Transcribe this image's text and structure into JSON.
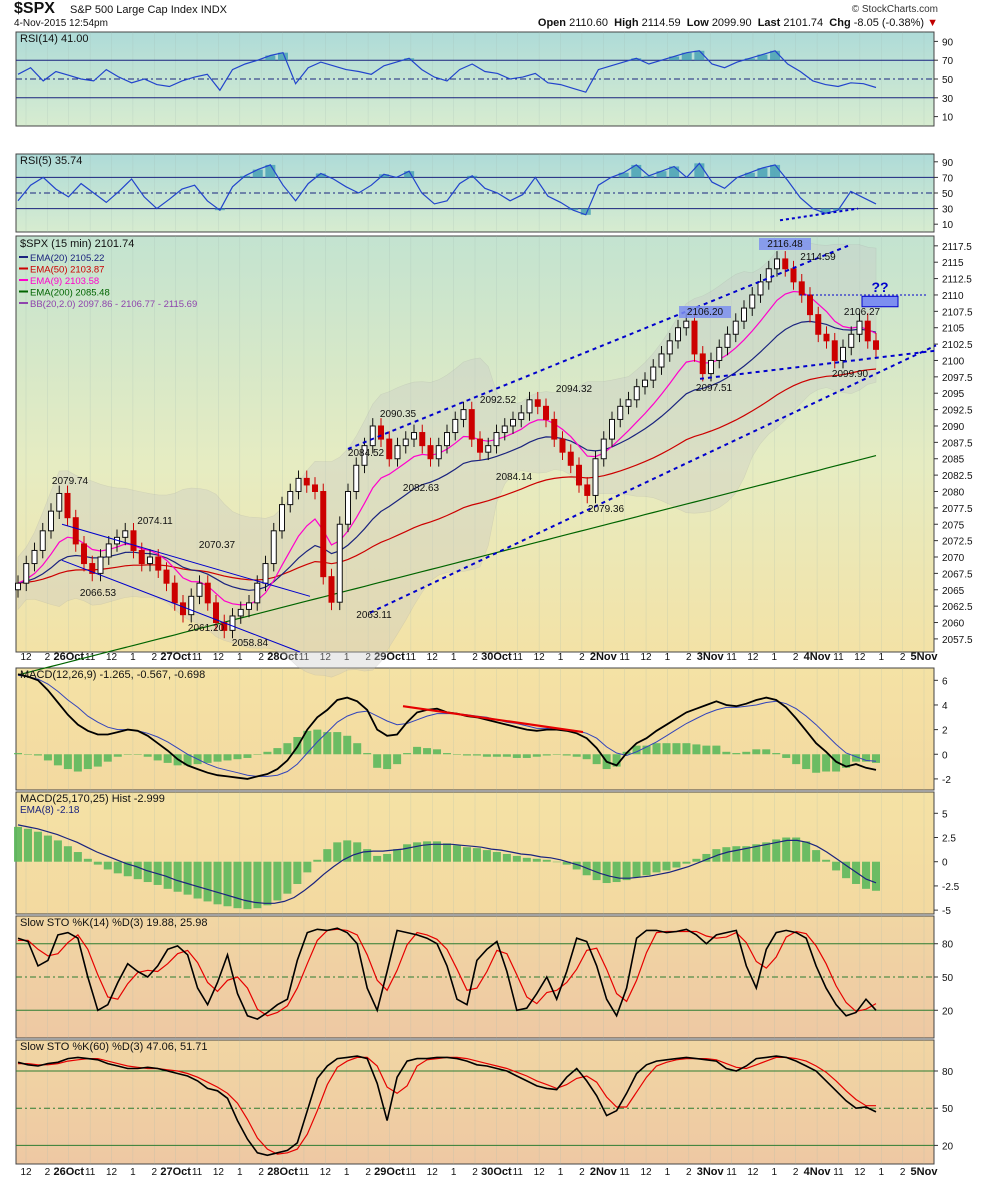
{
  "header": {
    "symbol": "$SPX",
    "name": "S&P 500 Large Cap Index",
    "exchange": "INDX",
    "date": "4-Nov-2015 12:54pm",
    "brand": "© StockCharts.com",
    "open_label": "Open",
    "open": "2110.60",
    "high_label": "High",
    "high": "2114.59",
    "low_label": "Low",
    "low": "2099.90",
    "last_label": "Last",
    "last": "2101.74",
    "chg_label": "Chg",
    "chg": "-8.05 (-0.38%)"
  },
  "colors": {
    "up_candle": "#111111",
    "down_candle": "#cc0000",
    "ema20": "#1a237e",
    "ema50": "#cc0000",
    "ema9": "#ff00cc",
    "ema200": "#006400",
    "bb": "#9e9e9e",
    "trend": "#0000cc",
    "rsi_line": "#2244cc",
    "hist": "#5cb85c",
    "sto_k": "#000000",
    "sto_d": "#e60000"
  },
  "x_axis": {
    "labels": [
      "12",
      "2",
      "26Oct",
      "11",
      "12",
      "1",
      "2",
      "27Oct",
      "11",
      "12",
      "1",
      "2",
      "28Oct",
      "11",
      "12",
      "1",
      "2",
      "29Oct",
      "11",
      "12",
      "1",
      "2",
      "30Oct",
      "11",
      "12",
      "1",
      "2",
      "2Nov",
      "11",
      "12",
      "1",
      "2",
      "3Nov",
      "11",
      "12",
      "1",
      "2",
      "4Nov",
      "11",
      "12",
      "1",
      "2",
      "5Nov"
    ]
  },
  "chart_data": [
    {
      "type": "line",
      "title": "RSI(14) 41.00",
      "ylim": [
        0,
        100
      ],
      "yticks": [
        10,
        30,
        50,
        70,
        90
      ],
      "levels": [
        30,
        50,
        70
      ],
      "values": [
        55,
        62,
        48,
        58,
        54,
        50,
        48,
        60,
        52,
        46,
        50,
        44,
        42,
        48,
        52,
        55,
        38,
        60,
        66,
        70,
        75,
        78,
        45,
        62,
        68,
        64,
        60,
        58,
        55,
        64,
        68,
        72,
        60,
        52,
        48,
        60,
        66,
        58,
        56,
        50,
        52,
        56,
        46,
        44,
        40,
        36,
        60,
        64,
        68,
        72,
        66,
        70,
        74,
        78,
        80,
        66,
        62,
        68,
        72,
        76,
        80,
        66,
        58,
        48,
        44,
        42,
        46,
        45,
        41
      ]
    },
    {
      "type": "line",
      "title": "RSI(5) 35.74",
      "ylim": [
        0,
        100
      ],
      "yticks": [
        10,
        30,
        50,
        70,
        90
      ],
      "levels": [
        30,
        50,
        70
      ],
      "values": [
        40,
        60,
        70,
        55,
        45,
        62,
        50,
        38,
        52,
        68,
        45,
        30,
        42,
        55,
        60,
        40,
        28,
        58,
        72,
        80,
        86,
        60,
        40,
        62,
        75,
        68,
        58,
        50,
        60,
        74,
        70,
        78,
        50,
        36,
        40,
        62,
        72,
        56,
        50,
        40,
        48,
        70,
        46,
        38,
        28,
        22,
        60,
        70,
        76,
        86,
        72,
        78,
        84,
        70,
        88,
        64,
        56,
        70,
        76,
        82,
        86,
        66,
        44,
        30,
        24,
        28,
        52,
        44,
        36
      ]
    },
    {
      "type": "line",
      "title": "$SPX (15 min) 2101.74",
      "ylim": [
        2055.5,
        2119.0
      ],
      "yticks": [
        2057.5,
        2060,
        2062.5,
        2065,
        2067.5,
        2070,
        2072.5,
        2075,
        2077.5,
        2080,
        2082.5,
        2085,
        2087.5,
        2090,
        2092.5,
        2095,
        2097.5,
        2100,
        2102.5,
        2105,
        2107.5,
        2110,
        2112.5,
        2115,
        2117.5
      ],
      "legend": [
        "EMA(20) 2105.22",
        "EMA(50) 2103.87",
        "EMA(9) 2103.58",
        "EMA(200) 2085.48",
        "BB(20,2.0) 2097.86 - 2106.77 - 2115.69"
      ],
      "close": [
        2066,
        2069,
        2071,
        2074,
        2077,
        2079.7,
        2076,
        2072,
        2069,
        2067.5,
        2070,
        2072,
        2073,
        2074,
        2071,
        2069,
        2070,
        2068,
        2066,
        2063,
        2061.2,
        2064,
        2066,
        2063,
        2060,
        2058.8,
        2061,
        2062,
        2063,
        2066,
        2069,
        2074,
        2078,
        2080,
        2082,
        2081,
        2080,
        2067,
        2063.1,
        2075,
        2080,
        2084,
        2087,
        2090,
        2088,
        2085,
        2087,
        2088,
        2089,
        2087,
        2085,
        2087,
        2089,
        2091,
        2092.5,
        2088,
        2086,
        2087,
        2089,
        2090,
        2091,
        2092,
        2094,
        2093,
        2091,
        2088,
        2086,
        2084,
        2081,
        2079.4,
        2085,
        2088,
        2091,
        2093,
        2094,
        2096,
        2097,
        2099,
        2101,
        2103,
        2105,
        2106,
        2101,
        2098,
        2100,
        2102,
        2104,
        2106,
        2108,
        2110,
        2112,
        2114,
        2115.5,
        2114,
        2112,
        2110,
        2107,
        2104,
        2103,
        2100,
        2102,
        2104,
        2106,
        2103,
        2101.7
      ],
      "annotations": [
        "2079.74",
        "2074.11",
        "2070.37",
        "2066.53",
        "2061.20",
        "2058.84",
        "2063.11",
        "2084.52",
        "2090.35",
        "2082.63",
        "2092.52",
        "2084.14",
        "2094.32",
        "2079.36",
        "2106.20",
        "2097.51",
        "2116.48",
        "2114.59",
        "2106.27",
        "2099.90",
        "??"
      ]
    },
    {
      "type": "line",
      "title": "MACD(12,26,9) -1.265, -0.567, -0.698",
      "ylim": [
        -2.9,
        7.0
      ],
      "yticks": [
        -2,
        0,
        2,
        4,
        6
      ],
      "macd": [
        6.5,
        6.3,
        6.0,
        5.2,
        4.2,
        3.2,
        2.4,
        1.9,
        1.6,
        1.6,
        1.8,
        2.0,
        1.9,
        1.5,
        0.9,
        0.3,
        -0.4,
        -0.9,
        -1.2,
        -1.5,
        -1.7,
        -1.8,
        -1.9,
        -2.0,
        -1.8,
        -1.6,
        -1.2,
        -0.5,
        0.6,
        2.0,
        3.0,
        3.6,
        4.4,
        4.6,
        4.3,
        3.6,
        2.0,
        1.5,
        1.6,
        2.6,
        3.4,
        3.6,
        3.7,
        3.4,
        3.3,
        3.1,
        3.0,
        2.8,
        2.6,
        2.4,
        2.2,
        2.0,
        1.9,
        2.0,
        2.0,
        1.9,
        1.7,
        1.3,
        0.5,
        -0.6,
        -0.9,
        0.1,
        0.9,
        1.3,
        1.9,
        2.4,
        2.9,
        3.4,
        3.7,
        4.0,
        4.3,
        4.0,
        3.9,
        4.1,
        4.4,
        4.6,
        4.4,
        3.8,
        2.9,
        1.9,
        0.9,
        0.2,
        -0.6,
        -1.0,
        -0.8,
        -1.1,
        -1.27
      ],
      "signal": [
        6.4,
        6.3,
        6.1,
        5.7,
        5.1,
        4.4,
        3.8,
        3.1,
        2.6,
        2.2,
        2.0,
        2.0,
        1.9,
        1.7,
        1.4,
        1.0,
        0.5,
        0.0,
        -0.4,
        -0.8,
        -1.1,
        -1.3,
        -1.5,
        -1.7,
        -1.8,
        -1.8,
        -1.7,
        -1.4,
        -0.8,
        0.1,
        1.0,
        1.8,
        2.6,
        3.1,
        3.4,
        3.5,
        3.1,
        2.7,
        2.4,
        2.5,
        2.8,
        3.1,
        3.3,
        3.3,
        3.3,
        3.2,
        3.1,
        3.0,
        2.8,
        2.6,
        2.5,
        2.3,
        2.1,
        2.1,
        2.0,
        2.0,
        1.9,
        1.7,
        1.3,
        0.6,
        0.1,
        -0.1,
        0.2,
        0.6,
        1.0,
        1.5,
        2.0,
        2.5,
        2.9,
        3.3,
        3.6,
        3.8,
        3.8,
        3.9,
        4.0,
        4.2,
        4.3,
        4.1,
        3.7,
        3.1,
        2.4,
        1.6,
        0.8,
        0.1,
        -0.2,
        -0.5,
        -0.57
      ],
      "hist": [
        0.1,
        0.0,
        -0.1,
        -0.5,
        -0.9,
        -1.2,
        -1.4,
        -1.2,
        -1.0,
        -0.6,
        -0.2,
        0.0,
        0.0,
        -0.2,
        -0.5,
        -0.7,
        -0.9,
        -0.9,
        -0.8,
        -0.7,
        -0.6,
        -0.5,
        -0.4,
        -0.3,
        0.0,
        0.2,
        0.5,
        0.9,
        1.4,
        1.9,
        2.0,
        1.8,
        1.8,
        1.5,
        0.9,
        0.1,
        -1.1,
        -1.2,
        -0.8,
        0.1,
        0.6,
        0.5,
        0.4,
        0.1,
        0.0,
        -0.1,
        -0.1,
        -0.2,
        -0.2,
        -0.2,
        -0.3,
        -0.3,
        -0.2,
        -0.1,
        0.0,
        -0.1,
        -0.2,
        -0.4,
        -0.8,
        -1.2,
        -1.0,
        0.2,
        0.7,
        0.7,
        0.9,
        0.9,
        0.9,
        0.9,
        0.8,
        0.7,
        0.7,
        0.2,
        0.1,
        0.2,
        0.4,
        0.4,
        0.1,
        -0.3,
        -0.8,
        -1.2,
        -1.5,
        -1.4,
        -1.4,
        -1.1,
        -0.6,
        -0.6,
        -0.7
      ],
      "trendline_note": "red divergence line"
    },
    {
      "type": "bar",
      "title": "MACD(25,170,25) Hist -2.999",
      "legend": [
        "EMA(8) -2.18"
      ],
      "ylim": [
        -5.4,
        7.2
      ],
      "yticks": [
        -5.0,
        -2.5,
        0.0,
        2.5,
        5.0
      ],
      "values": [
        3.6,
        3.4,
        3.1,
        2.7,
        2.2,
        1.6,
        1.0,
        0.3,
        -0.3,
        -0.8,
        -1.2,
        -1.5,
        -1.8,
        -2.1,
        -2.4,
        -2.8,
        -3.1,
        -3.4,
        -3.8,
        -4.1,
        -4.4,
        -4.6,
        -4.8,
        -4.9,
        -4.8,
        -4.5,
        -4.0,
        -3.3,
        -2.3,
        -1.1,
        0.2,
        1.3,
        2.0,
        2.2,
        2.0,
        1.3,
        0.6,
        0.8,
        1.3,
        1.8,
        2.0,
        2.1,
        2.1,
        1.9,
        1.7,
        1.5,
        1.4,
        1.2,
        1.0,
        0.8,
        0.6,
        0.4,
        0.3,
        0.2,
        0.0,
        -0.3,
        -0.8,
        -1.4,
        -1.9,
        -2.2,
        -2.1,
        -1.9,
        -1.6,
        -1.4,
        -1.1,
        -0.9,
        -0.6,
        -0.2,
        0.3,
        0.8,
        1.3,
        1.5,
        1.6,
        1.6,
        1.8,
        2.0,
        2.3,
        2.5,
        2.5,
        2.1,
        1.2,
        0.2,
        -0.9,
        -1.7,
        -2.3,
        -2.8,
        -3.0
      ],
      "ema": [
        3.8,
        3.6,
        3.4,
        3.1,
        2.8,
        2.4,
        2.0,
        1.5,
        1.0,
        0.6,
        0.2,
        -0.2,
        -0.5,
        -0.9,
        -1.2,
        -1.5,
        -1.9,
        -2.2,
        -2.5,
        -2.8,
        -3.1,
        -3.4,
        -3.7,
        -4.0,
        -4.2,
        -4.3,
        -4.3,
        -4.1,
        -3.7,
        -3.0,
        -2.2,
        -1.3,
        -0.5,
        0.2,
        0.7,
        1.0,
        1.1,
        1.1,
        1.2,
        1.3,
        1.5,
        1.7,
        1.8,
        1.8,
        1.8,
        1.7,
        1.6,
        1.5,
        1.3,
        1.2,
        1.0,
        0.8,
        0.7,
        0.5,
        0.4,
        0.2,
        -0.1,
        -0.4,
        -0.8,
        -1.2,
        -1.5,
        -1.7,
        -1.7,
        -1.6,
        -1.5,
        -1.3,
        -1.1,
        -0.8,
        -0.5,
        -0.1,
        0.3,
        0.7,
        1.0,
        1.2,
        1.4,
        1.6,
        1.8,
        2.0,
        2.2,
        2.2,
        2.0,
        1.6,
        1.0,
        0.3,
        -0.4,
        -1.1,
        -1.8,
        -2.18
      ]
    },
    {
      "type": "line",
      "title": "Slow STO %K(14) %D(3) 19.88, 25.98",
      "ylim": [
        -5,
        105
      ],
      "yticks": [
        20,
        50,
        80
      ],
      "levels": [
        20,
        50,
        80
      ],
      "k": [
        85,
        82,
        60,
        65,
        88,
        90,
        85,
        50,
        20,
        25,
        45,
        62,
        55,
        50,
        60,
        75,
        78,
        70,
        40,
        25,
        45,
        70,
        35,
        15,
        12,
        18,
        25,
        30,
        65,
        90,
        93,
        92,
        94,
        90,
        80,
        40,
        20,
        55,
        92,
        90,
        88,
        85,
        80,
        60,
        30,
        25,
        65,
        75,
        82,
        55,
        20,
        22,
        35,
        50,
        30,
        55,
        85,
        82,
        60,
        30,
        15,
        40,
        85,
        92,
        92,
        90,
        91,
        93,
        88,
        80,
        88,
        90,
        92,
        60,
        40,
        75,
        90,
        92,
        90,
        85,
        60,
        40,
        25,
        15,
        18,
        30,
        20
      ],
      "d": [
        83,
        83,
        75,
        69,
        71,
        81,
        88,
        75,
        52,
        32,
        30,
        44,
        54,
        56,
        55,
        62,
        71,
        74,
        63,
        45,
        37,
        47,
        50,
        40,
        21,
        15,
        18,
        24,
        40,
        62,
        83,
        92,
        93,
        92,
        88,
        70,
        47,
        38,
        56,
        79,
        90,
        88,
        84,
        75,
        57,
        38,
        40,
        55,
        74,
        71,
        52,
        32,
        26,
        36,
        38,
        45,
        57,
        74,
        76,
        57,
        35,
        28,
        47,
        72,
        90,
        91,
        91,
        91,
        91,
        87,
        85,
        86,
        90,
        81,
        64,
        58,
        68,
        86,
        91,
        89,
        78,
        62,
        42,
        27,
        19,
        21,
        26
      ]
    },
    {
      "type": "line",
      "title": "Slow STO %K(60) %D(3) 47.06, 51.71",
      "ylim": [
        5,
        105
      ],
      "yticks": [
        20,
        50,
        80
      ],
      "levels": [
        20,
        50,
        80
      ],
      "k": [
        87,
        85,
        84,
        86,
        87,
        90,
        91,
        90,
        89,
        86,
        84,
        82,
        82,
        83,
        82,
        80,
        78,
        76,
        72,
        66,
        64,
        58,
        40,
        25,
        14,
        12,
        14,
        16,
        22,
        48,
        74,
        84,
        90,
        91,
        92,
        90,
        70,
        40,
        75,
        88,
        90,
        90,
        91,
        91,
        90,
        88,
        85,
        84,
        82,
        80,
        76,
        72,
        68,
        66,
        65,
        75,
        82,
        72,
        60,
        44,
        48,
        62,
        78,
        85,
        88,
        89,
        90,
        91,
        90,
        89,
        88,
        82,
        80,
        84,
        90,
        91,
        92,
        91,
        88,
        84,
        80,
        72,
        64,
        56,
        50,
        51,
        47
      ],
      "d": [
        86,
        86,
        85,
        85,
        86,
        88,
        89,
        90,
        90,
        88,
        86,
        84,
        83,
        82,
        82,
        81,
        80,
        78,
        75,
        71,
        67,
        62,
        54,
        41,
        26,
        17,
        13,
        14,
        17,
        29,
        48,
        69,
        83,
        88,
        91,
        91,
        84,
        67,
        62,
        68,
        84,
        89,
        90,
        91,
        91,
        90,
        88,
        86,
        84,
        82,
        79,
        76,
        72,
        69,
        66,
        69,
        74,
        76,
        71,
        59,
        51,
        51,
        63,
        75,
        84,
        87,
        89,
        90,
        90,
        90,
        89,
        86,
        83,
        82,
        85,
        88,
        91,
        91,
        90,
        88,
        84,
        79,
        72,
        64,
        57,
        52,
        52
      ]
    }
  ]
}
